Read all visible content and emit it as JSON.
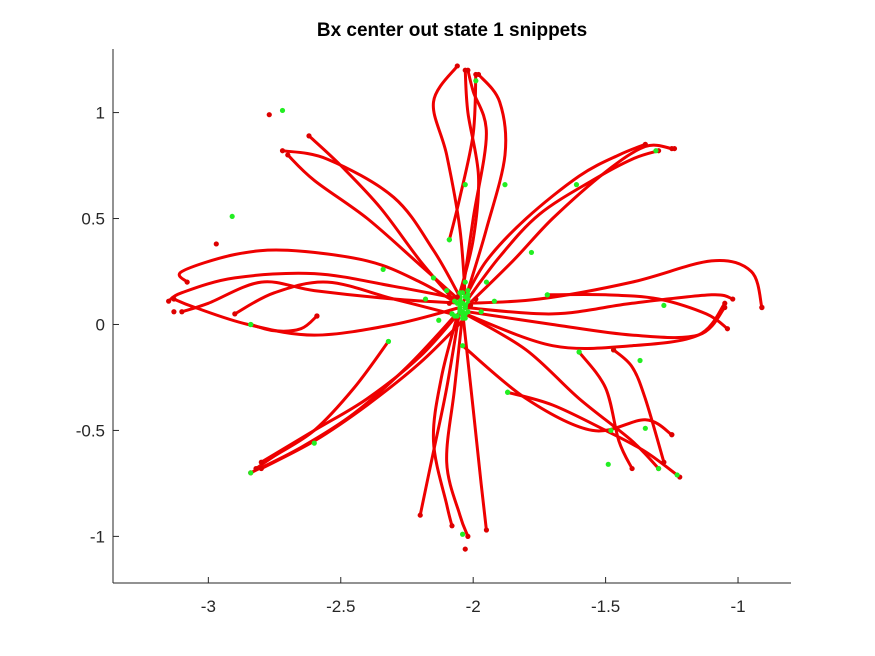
{
  "chart_data": {
    "type": "line",
    "title": "Bx  center out state 1 snippets",
    "xlabel": "",
    "ylabel": "",
    "xlim": [
      -3.36,
      -0.8
    ],
    "ylim": [
      -1.22,
      1.3
    ],
    "xticks": [
      -3,
      -2.5,
      -2,
      -1.5,
      -1
    ],
    "xtick_labels": [
      "-3",
      "-2.5",
      "-2",
      "-1.5",
      "-1"
    ],
    "yticks": [
      1,
      0.5,
      0,
      -0.5,
      -1
    ],
    "ytick_labels": [
      "1",
      "0.5",
      "0",
      "-0.5",
      "-1"
    ],
    "grid": false,
    "line_color": "#ee0000",
    "start_marker_color": "#22ee22",
    "end_marker_color": "#dd0000",
    "series": [
      {
        "x": [
          -2.05,
          -2.15,
          -2.3,
          -2.55,
          -2.72
        ],
        "y": [
          0.13,
          0.35,
          0.6,
          0.78,
          0.82
        ]
      },
      {
        "x": [
          -2.07,
          -2.2,
          -2.35,
          -2.5,
          -2.62
        ],
        "y": [
          0.11,
          0.3,
          0.55,
          0.75,
          0.89
        ]
      },
      {
        "x": [
          -2.03,
          -2.2,
          -2.4,
          -2.6,
          -2.7
        ],
        "y": [
          0.09,
          0.28,
          0.5,
          0.68,
          0.8
        ]
      },
      {
        "x": [
          -2.06,
          -2.2,
          -2.4,
          -2.7,
          -2.9,
          -3.1,
          -3.08
        ],
        "y": [
          0.1,
          0.2,
          0.3,
          0.35,
          0.33,
          0.25,
          0.2
        ]
      },
      {
        "x": [
          -2.05,
          -2.3,
          -2.6,
          -2.9,
          -3.1,
          -3.15
        ],
        "y": [
          0.12,
          0.18,
          0.24,
          0.22,
          0.15,
          0.11
        ]
      },
      {
        "x": [
          -2.04,
          -2.3,
          -2.6,
          -2.8,
          -3.0,
          -3.1
        ],
        "y": [
          0.1,
          0.12,
          0.16,
          0.2,
          0.1,
          0.06
        ]
      },
      {
        "x": [
          -2.08,
          -2.3,
          -2.55,
          -2.75,
          -2.9
        ],
        "y": [
          0.05,
          0.12,
          0.2,
          0.15,
          0.05
        ]
      },
      {
        "x": [
          -2.05,
          -2.3,
          -2.6,
          -2.85,
          -3.05,
          -3.13
        ],
        "y": [
          0.08,
          0.0,
          -0.05,
          0.0,
          0.08,
          0.12
        ]
      },
      {
        "x": [
          -2.84,
          -2.75,
          -2.65,
          -2.59
        ],
        "y": [
          0.0,
          -0.03,
          -0.02,
          0.04
        ]
      },
      {
        "x": [
          -2.05,
          -2.2,
          -2.4,
          -2.6,
          -2.8
        ],
        "y": [
          0.06,
          -0.15,
          -0.35,
          -0.5,
          -0.65
        ]
      },
      {
        "x": [
          -2.07,
          -2.25,
          -2.45,
          -2.65,
          -2.84
        ],
        "y": [
          0.04,
          -0.2,
          -0.42,
          -0.58,
          -0.7
        ]
      },
      {
        "x": [
          -2.03,
          -2.2,
          -2.4,
          -2.6,
          -2.8
        ],
        "y": [
          0.03,
          -0.18,
          -0.38,
          -0.55,
          -0.68
        ]
      },
      {
        "x": [
          -2.32,
          -2.45,
          -2.6,
          -2.75,
          -2.82
        ],
        "y": [
          -0.08,
          -0.3,
          -0.5,
          -0.62,
          -0.68
        ]
      },
      {
        "x": [
          -2.05,
          -2.1,
          -2.15,
          -2.2
        ],
        "y": [
          0.07,
          -0.3,
          -0.6,
          -0.9
        ]
      },
      {
        "x": [
          -2.04,
          -2.07,
          -2.1,
          -2.05,
          -2.02
        ],
        "y": [
          0.05,
          -0.3,
          -0.65,
          -0.9,
          -1.0
        ]
      },
      {
        "x": [
          -2.04,
          -2.0,
          -1.97,
          -1.95
        ],
        "y": [
          0.06,
          -0.4,
          -0.75,
          -0.97
        ]
      },
      {
        "x": [
          -2.06,
          -2.12,
          -2.15,
          -2.1,
          -2.08
        ],
        "y": [
          0.04,
          -0.25,
          -0.55,
          -0.85,
          -0.95
        ]
      },
      {
        "x": [
          -2.04,
          -1.95,
          -1.8,
          -1.6,
          -1.45,
          -1.35
        ],
        "y": [
          0.1,
          0.3,
          0.5,
          0.7,
          0.8,
          0.85
        ]
      },
      {
        "x": [
          -2.02,
          -1.9,
          -1.75,
          -1.55,
          -1.4,
          -1.3
        ],
        "y": [
          0.12,
          0.32,
          0.52,
          0.68,
          0.78,
          0.82
        ]
      },
      {
        "x": [
          -2.03,
          -1.85,
          -1.7,
          -1.5,
          -1.35,
          -1.25
        ],
        "y": [
          0.08,
          0.3,
          0.5,
          0.72,
          0.84,
          0.83
        ]
      },
      {
        "x": [
          -2.02,
          -1.75,
          -1.4,
          -1.1,
          -0.95,
          -0.91
        ],
        "y": [
          0.1,
          0.12,
          0.2,
          0.3,
          0.25,
          0.08
        ]
      },
      {
        "x": [
          -2.03,
          -1.7,
          -1.4,
          -1.1,
          -1.02
        ],
        "y": [
          0.08,
          0.05,
          0.1,
          0.14,
          0.12
        ]
      },
      {
        "x": [
          -2.02,
          -1.7,
          -1.4,
          -1.15,
          -1.05
        ],
        "y": [
          0.06,
          0.0,
          -0.05,
          -0.05,
          0.08
        ]
      },
      {
        "x": [
          -1.72,
          -1.5,
          -1.3,
          -1.12,
          -1.04
        ],
        "y": [
          0.14,
          0.14,
          0.12,
          0.05,
          -0.02
        ]
      },
      {
        "x": [
          -2.03,
          -1.7,
          -1.4,
          -1.15,
          -1.05
        ],
        "y": [
          0.05,
          -0.1,
          -0.1,
          -0.05,
          0.1
        ]
      },
      {
        "x": [
          -1.87,
          -1.7,
          -1.5,
          -1.35,
          -1.22
        ],
        "y": [
          -0.32,
          -0.38,
          -0.5,
          -0.6,
          -0.72
        ]
      },
      {
        "x": [
          -1.6,
          -1.5,
          -1.45,
          -1.4
        ],
        "y": [
          -0.13,
          -0.3,
          -0.55,
          -0.68
        ]
      },
      {
        "x": [
          -1.47,
          -1.4,
          -1.35,
          -1.28
        ],
        "y": [
          -0.12,
          -0.2,
          -0.35,
          -0.65
        ]
      },
      {
        "x": [
          -2.04,
          -2.0,
          -1.95,
          -2.0,
          -2.02
        ],
        "y": [
          0.15,
          0.5,
          0.9,
          1.1,
          1.2
        ]
      },
      {
        "x": [
          -2.03,
          -2.05,
          -2.1,
          -2.15,
          -2.06
        ],
        "y": [
          0.13,
          0.45,
          0.8,
          1.05,
          1.22
        ]
      },
      {
        "x": [
          -2.02,
          -1.95,
          -1.88,
          -1.9,
          -1.98
        ],
        "y": [
          0.16,
          0.45,
          0.8,
          1.05,
          1.18
        ]
      },
      {
        "x": [
          -2.05,
          -2.0,
          -1.98,
          -2.02,
          -2.03
        ],
        "y": [
          0.15,
          0.4,
          0.7,
          1.0,
          1.2
        ]
      },
      {
        "x": [
          -2.09,
          -2.05,
          -2.0,
          -1.99
        ],
        "y": [
          0.4,
          0.6,
          0.9,
          1.18
        ]
      },
      {
        "x": [
          -2.04,
          -1.8,
          -1.55,
          -1.35,
          -1.25
        ],
        "y": [
          -0.1,
          -0.35,
          -0.5,
          -0.45,
          -0.52
        ]
      },
      {
        "x": [
          -2.03,
          -1.8,
          -1.6,
          -1.4,
          -1.3
        ],
        "y": [
          0.05,
          -0.12,
          -0.35,
          -0.55,
          -0.68
        ]
      }
    ],
    "scatter_points": [
      {
        "x": -2.72,
        "y": 1.01,
        "c": "g"
      },
      {
        "x": -2.77,
        "y": 0.99,
        "c": "r"
      },
      {
        "x": -2.91,
        "y": 0.51,
        "c": "g"
      },
      {
        "x": -2.97,
        "y": 0.38,
        "c": "r"
      },
      {
        "x": -2.34,
        "y": 0.26,
        "c": "g"
      },
      {
        "x": -2.84,
        "y": 0.0,
        "c": "g"
      },
      {
        "x": -2.59,
        "y": 0.04,
        "c": "r"
      },
      {
        "x": -3.13,
        "y": 0.06,
        "c": "r"
      },
      {
        "x": -2.32,
        "y": -0.08,
        "c": "g"
      },
      {
        "x": -2.6,
        "y": -0.56,
        "c": "g"
      },
      {
        "x": -2.84,
        "y": -0.7,
        "c": "g"
      },
      {
        "x": -2.04,
        "y": -0.99,
        "c": "g"
      },
      {
        "x": -2.03,
        "y": -1.06,
        "c": "r"
      },
      {
        "x": -1.87,
        "y": -0.32,
        "c": "g"
      },
      {
        "x": -1.72,
        "y": 0.14,
        "c": "g"
      },
      {
        "x": -1.78,
        "y": 0.34,
        "c": "g"
      },
      {
        "x": -1.61,
        "y": 0.66,
        "c": "g"
      },
      {
        "x": -1.88,
        "y": 0.66,
        "c": "g"
      },
      {
        "x": -2.03,
        "y": 0.66,
        "c": "g"
      },
      {
        "x": -1.99,
        "y": 1.15,
        "c": "g"
      },
      {
        "x": -2.09,
        "y": 0.4,
        "c": "g"
      },
      {
        "x": -1.31,
        "y": 0.82,
        "c": "g"
      },
      {
        "x": -1.24,
        "y": 0.83,
        "c": "r"
      },
      {
        "x": -0.91,
        "y": 0.08,
        "c": "r"
      },
      {
        "x": -1.28,
        "y": 0.09,
        "c": "g"
      },
      {
        "x": -1.6,
        "y": -0.13,
        "c": "g"
      },
      {
        "x": -1.47,
        "y": -0.12,
        "c": "r"
      },
      {
        "x": -1.37,
        "y": -0.17,
        "c": "g"
      },
      {
        "x": -1.48,
        "y": -0.5,
        "c": "g"
      },
      {
        "x": -1.35,
        "y": -0.49,
        "c": "g"
      },
      {
        "x": -1.25,
        "y": -0.52,
        "c": "r"
      },
      {
        "x": -1.49,
        "y": -0.66,
        "c": "g"
      },
      {
        "x": -1.3,
        "y": -0.68,
        "c": "g"
      },
      {
        "x": -1.23,
        "y": -0.71,
        "c": "g"
      },
      {
        "x": -2.05,
        "y": 0.1,
        "c": "g"
      },
      {
        "x": -2.08,
        "y": 0.05,
        "c": "g"
      },
      {
        "x": -2.02,
        "y": 0.14,
        "c": "g"
      },
      {
        "x": -2.1,
        "y": 0.16,
        "c": "g"
      },
      {
        "x": -1.97,
        "y": 0.06,
        "c": "g"
      },
      {
        "x": -2.03,
        "y": 0.2,
        "c": "g"
      },
      {
        "x": -2.13,
        "y": 0.02,
        "c": "g"
      },
      {
        "x": -1.95,
        "y": 0.2,
        "c": "g"
      },
      {
        "x": -2.15,
        "y": 0.22,
        "c": "g"
      },
      {
        "x": -2.04,
        "y": 0.03,
        "c": "g"
      },
      {
        "x": -1.92,
        "y": 0.11,
        "c": "g"
      },
      {
        "x": -2.18,
        "y": 0.12,
        "c": "g"
      },
      {
        "x": -2.06,
        "y": 0.13,
        "c": "r"
      },
      {
        "x": -2.01,
        "y": 0.09,
        "c": "r"
      },
      {
        "x": -2.09,
        "y": 0.1,
        "c": "r"
      },
      {
        "x": -1.99,
        "y": 0.12,
        "c": "r"
      }
    ]
  }
}
